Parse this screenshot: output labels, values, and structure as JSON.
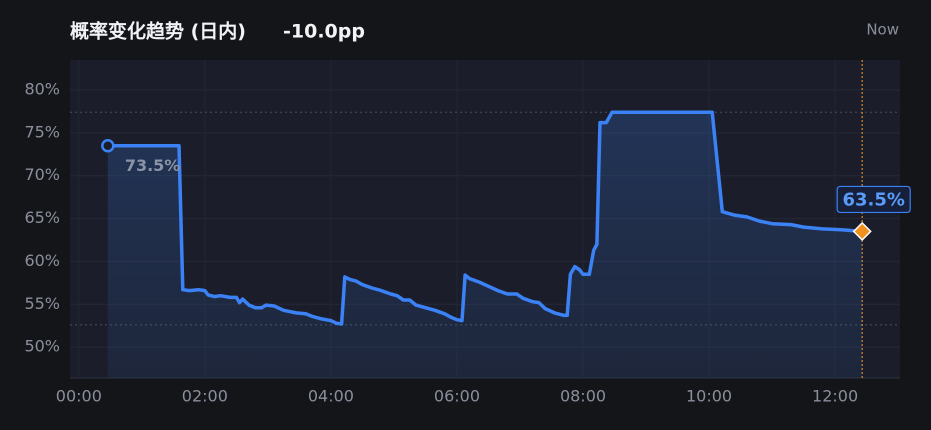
{
  "chart_data": {
    "type": "line",
    "title": "概率变化趋势 (日内)",
    "subtitle": "-10.0pp",
    "now": {
      "label": "Now",
      "x": 12.43
    },
    "xlim": [
      -0.14,
      13.03
    ],
    "ylim": [
      46.4,
      83.5
    ],
    "xticks": [
      {
        "value": 0,
        "label": "00:00"
      },
      {
        "value": 2,
        "label": "02:00"
      },
      {
        "value": 4,
        "label": "04:00"
      },
      {
        "value": 6,
        "label": "06:00"
      },
      {
        "value": 8,
        "label": "08:00"
      },
      {
        "value": 10,
        "label": "10:00"
      },
      {
        "value": 12,
        "label": "12:00"
      }
    ],
    "yticks": [
      {
        "value": 50,
        "label": "50%"
      },
      {
        "value": 55,
        "label": "55%"
      },
      {
        "value": 60,
        "label": "60%"
      },
      {
        "value": 65,
        "label": "65%"
      },
      {
        "value": 70,
        "label": "70%"
      },
      {
        "value": 75,
        "label": "75%"
      },
      {
        "value": 80,
        "label": "80%"
      }
    ],
    "grid": true,
    "reference_lines": [
      77.4,
      52.6
    ],
    "x": [
      0.46,
      1.59,
      1.65,
      1.75,
      1.9,
      2.0,
      2.05,
      2.15,
      2.25,
      2.4,
      2.5,
      2.55,
      2.6,
      2.7,
      2.8,
      2.9,
      2.97,
      3.1,
      3.25,
      3.45,
      3.6,
      3.7,
      3.85,
      4.0,
      4.08,
      4.17,
      4.22,
      4.3,
      4.4,
      4.5,
      4.65,
      4.8,
      4.95,
      5.05,
      5.15,
      5.25,
      5.35,
      5.5,
      5.65,
      5.8,
      5.9,
      6.0,
      6.08,
      6.13,
      6.2,
      6.35,
      6.5,
      6.65,
      6.8,
      6.95,
      7.05,
      7.2,
      7.3,
      7.4,
      7.55,
      7.7,
      7.75,
      7.8,
      7.87,
      7.95,
      8.0,
      8.1,
      8.17,
      8.22,
      8.27,
      8.37,
      8.46,
      10.05,
      10.21,
      10.4,
      10.6,
      10.8,
      11.0,
      11.3,
      11.5,
      11.8,
      12.1,
      12.43
    ],
    "series": [
      {
        "color": "#3b82f6",
        "values": [
          73.5,
          73.5,
          56.7,
          56.6,
          56.7,
          56.6,
          56.1,
          55.9,
          56.0,
          55.8,
          55.8,
          55.2,
          55.6,
          54.9,
          54.6,
          54.6,
          54.9,
          54.8,
          54.3,
          54.0,
          53.9,
          53.6,
          53.3,
          53.1,
          52.8,
          52.7,
          58.2,
          57.9,
          57.7,
          57.3,
          56.9,
          56.6,
          56.2,
          56.0,
          55.5,
          55.5,
          54.9,
          54.6,
          54.3,
          53.9,
          53.5,
          53.2,
          53.1,
          58.4,
          58.0,
          57.6,
          57.1,
          56.6,
          56.2,
          56.2,
          55.7,
          55.3,
          55.2,
          54.5,
          54.0,
          53.7,
          53.7,
          58.5,
          59.4,
          59.0,
          58.5,
          58.5,
          61.3,
          62.0,
          76.2,
          76.2,
          77.4,
          77.4,
          65.8,
          65.4,
          65.2,
          64.7,
          64.4,
          64.3,
          64.0,
          63.8,
          63.7,
          63.5
        ]
      }
    ],
    "annotations": [
      {
        "x": 0.46,
        "y": 73.5,
        "label": "73.5%"
      },
      {
        "x": 12.43,
        "y": 63.5,
        "label": "63.5%"
      }
    ]
  }
}
